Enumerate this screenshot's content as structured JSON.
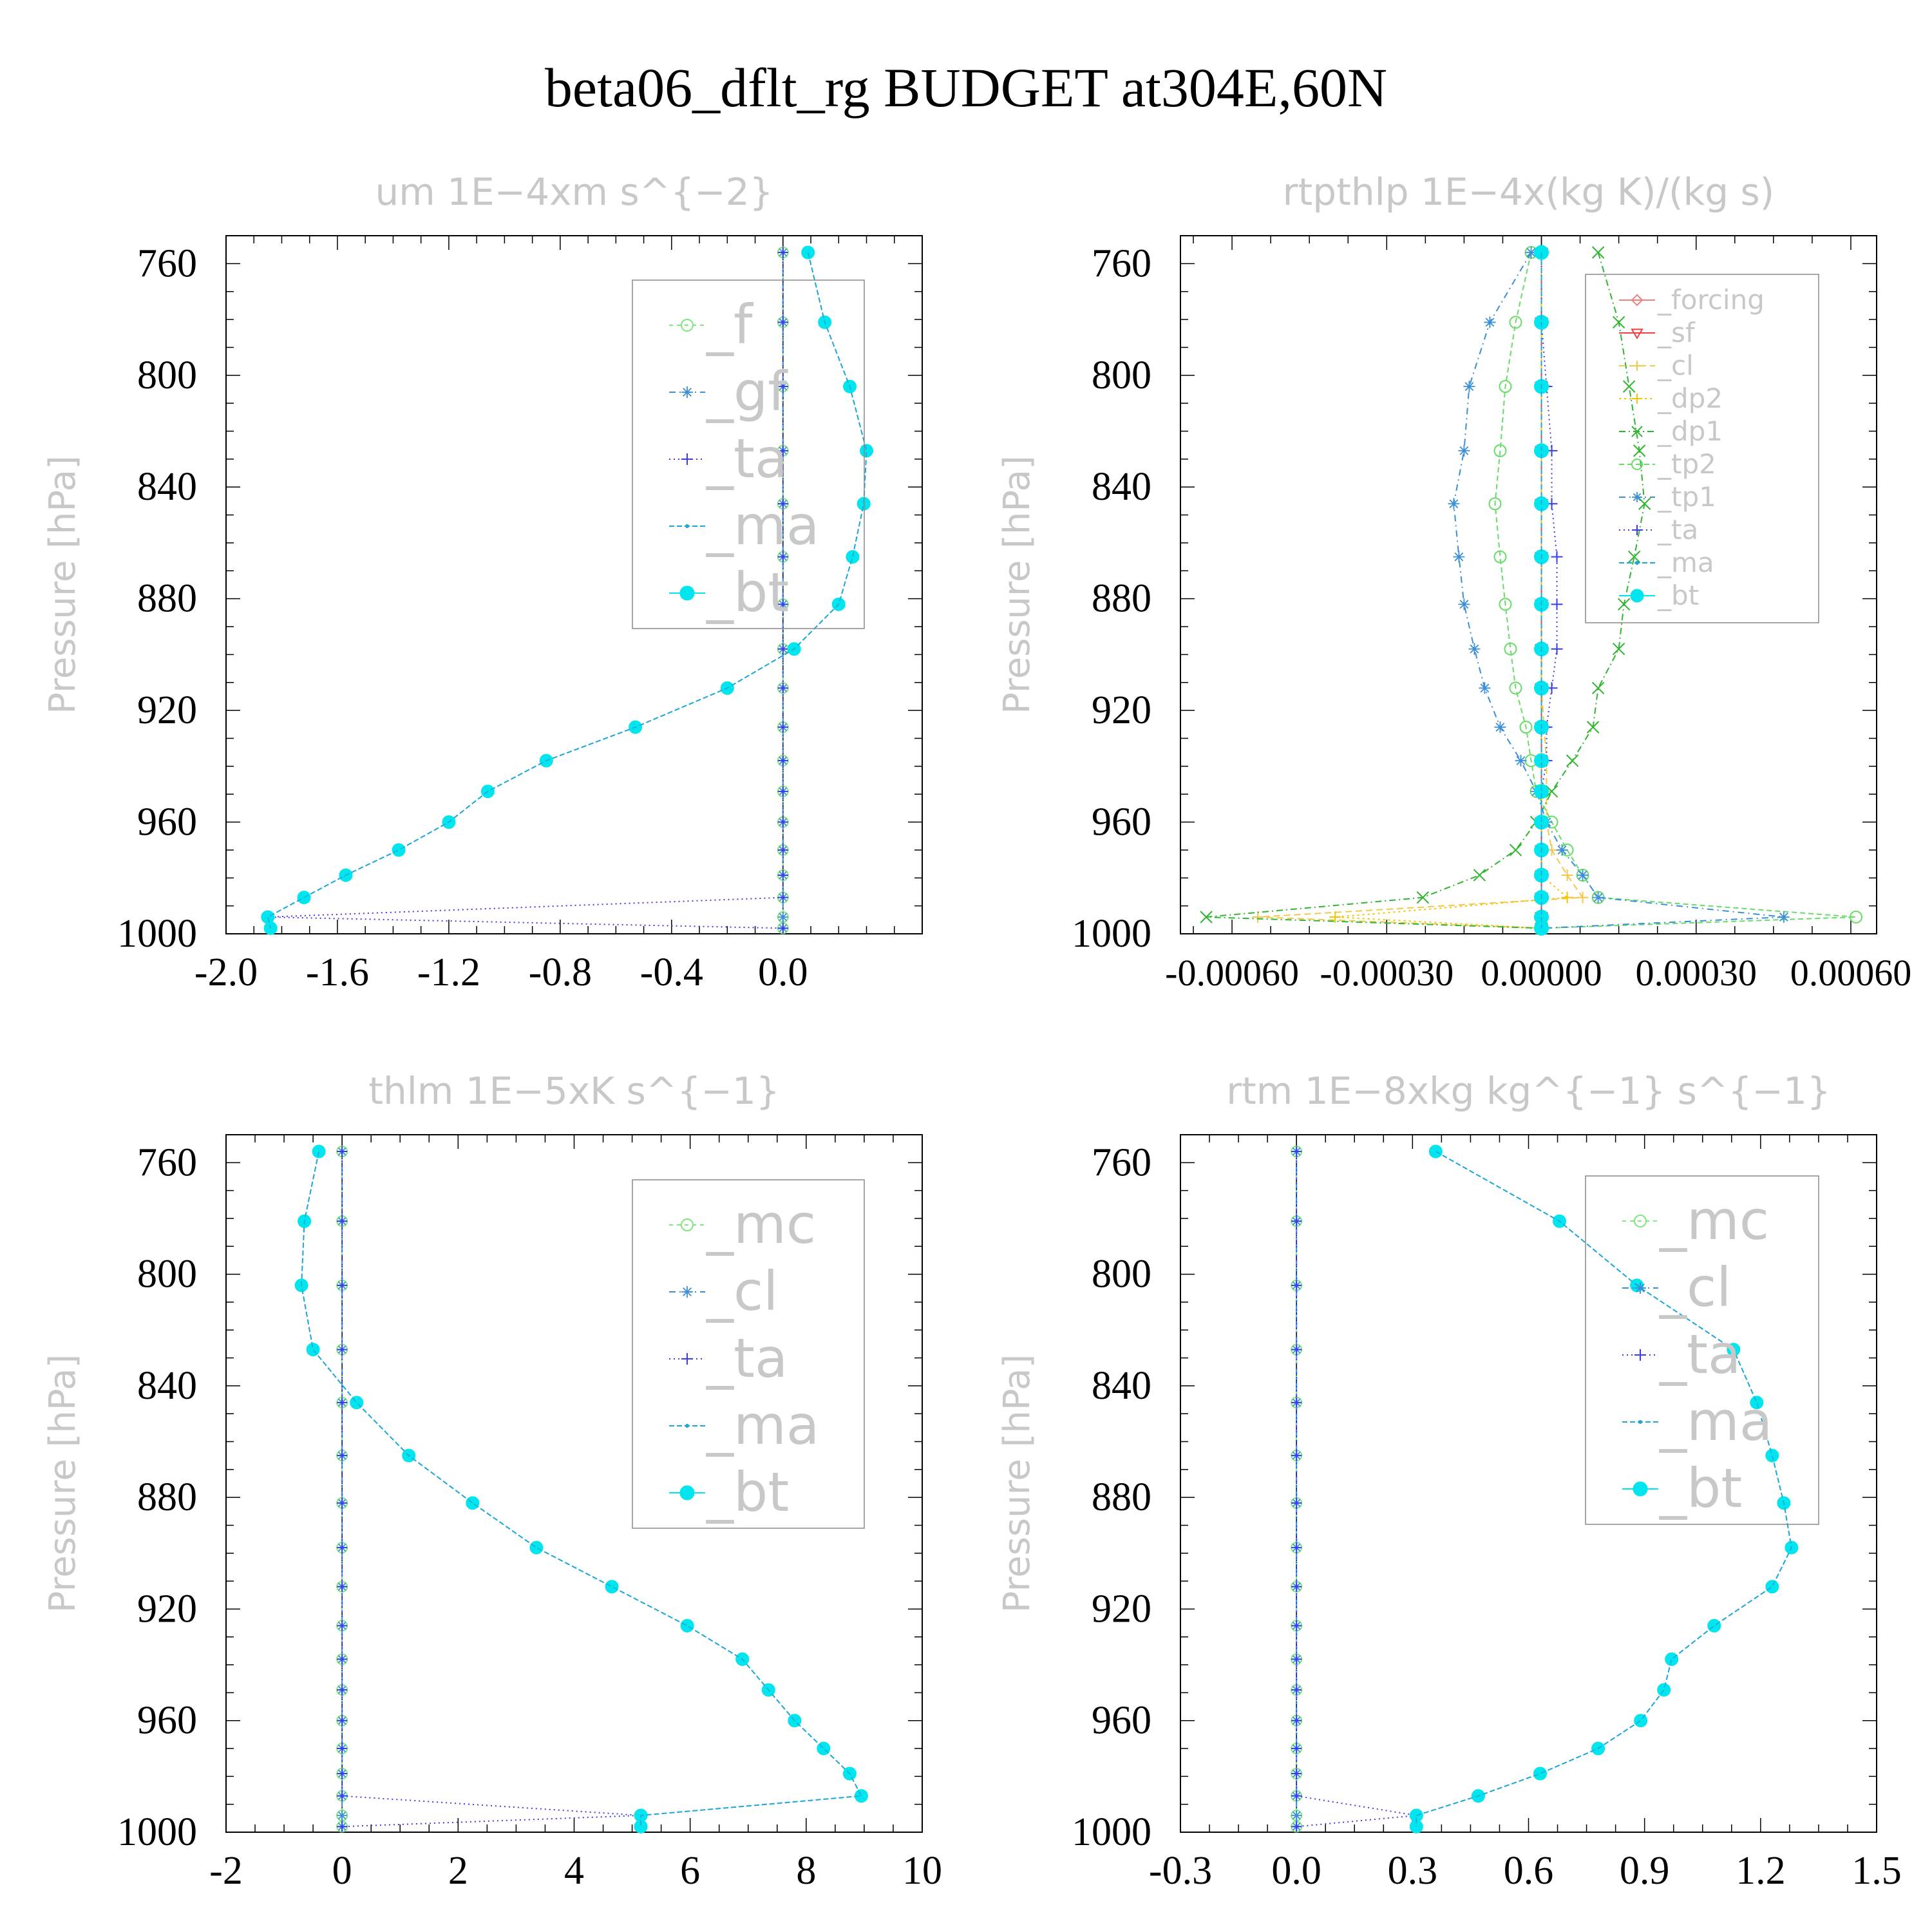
{
  "figure_title": "beta06_dflt_rg  BUDGET at304E,60N",
  "colors": {
    "_f": "#7de87d",
    "_gf": "#3a8fd6",
    "_ta": "#3b3bea",
    "_ma": "#1aa7d8",
    "_bt": "#00e5ee",
    "_mc": "#7de87d",
    "_cl": "#3a8fd6",
    "_forcing": "#f08080",
    "_sf": "#ee4040",
    "_cl_yellow": "#f2c84b",
    "_dp2": "#f5c400",
    "_dp1": "#2fb52f",
    "_tp2": "#66dd66",
    "_tp1": "#3a8fd6",
    "zero_line": "#000000",
    "axes": "#000000",
    "label_gray": "#c8c8c8"
  },
  "chart_data": [
    {
      "type": "line",
      "title": "um   1E−4xm s^{−2}",
      "ylabel": "Pressure [hPa]",
      "xlim": [
        -2.0,
        0.5
      ],
      "ylim": [
        1000,
        750
      ],
      "xticks": [
        -2.0,
        -1.6,
        -1.2,
        -0.8,
        -0.4,
        0.0
      ],
      "xticklabels": [
        "-2.0",
        "-1.6",
        "-1.2",
        "-0.8",
        "-0.4",
        "0.0"
      ],
      "yticks": [
        760,
        800,
        840,
        880,
        920,
        960,
        1000
      ],
      "yticklabels": [
        "760",
        "800",
        "840",
        "880",
        "920",
        "960",
        "1000"
      ],
      "legend": {
        "position": "top-right",
        "font": "large",
        "entries": [
          "_f",
          "_gf",
          "_ta",
          "_ma",
          "_bt"
        ]
      },
      "levels": [
        756,
        781,
        804,
        827,
        846,
        865,
        882,
        898,
        912,
        926,
        938,
        949,
        960,
        970,
        979,
        987,
        994,
        998
      ],
      "series": [
        {
          "name": "_f",
          "color": "#7de87d",
          "marker": "circle-open",
          "dash": "6,6",
          "values": [
            0,
            0,
            0,
            0,
            0,
            0,
            0,
            0,
            0,
            0,
            0,
            0,
            0,
            0,
            0,
            0,
            0,
            0
          ]
        },
        {
          "name": "_gf",
          "color": "#3a8fd6",
          "marker": "star",
          "dash": "10,6,2,6",
          "values": [
            0,
            0,
            0,
            0,
            0,
            0,
            0,
            0,
            0,
            0,
            0,
            0,
            0,
            0,
            0,
            0,
            0,
            0
          ]
        },
        {
          "name": "_ta",
          "color": "#3b3bea",
          "marker": "plus",
          "dash": "2,5",
          "values": [
            0,
            0,
            0,
            0,
            0,
            0,
            0,
            0,
            0,
            0,
            0,
            0,
            0,
            0,
            0,
            0,
            -1.85,
            0
          ]
        },
        {
          "name": "_ma",
          "color": "#1aa7d8",
          "marker": "dot",
          "dash": "8,4",
          "values": [
            0.09,
            0.15,
            0.24,
            0.3,
            0.29,
            0.25,
            0.2,
            0.04,
            -0.2,
            -0.53,
            -0.85,
            -1.06,
            -1.2,
            -1.38,
            -1.57,
            -1.72,
            -1.85,
            -1.84
          ]
        },
        {
          "name": "_bt",
          "color": "#00e5ee",
          "marker": "filled-circle",
          "dash": "",
          "values": [
            0.09,
            0.15,
            0.24,
            0.3,
            0.29,
            0.25,
            0.2,
            0.04,
            -0.2,
            -0.53,
            -0.85,
            -1.06,
            -1.2,
            -1.38,
            -1.57,
            -1.72,
            -1.85,
            -1.84
          ]
        }
      ]
    },
    {
      "type": "line",
      "title": "rtpthlp   1E−4x(kg K)/(kg s)",
      "ylabel": "Pressure [hPa]",
      "xlim": [
        -0.0007,
        0.00065
      ],
      "ylim": [
        1000,
        750
      ],
      "xticks": [
        -0.0006,
        -0.0003,
        0.0,
        0.0003,
        0.0006
      ],
      "xticklabels": [
        "-0.00060",
        "-0.00030",
        "0.00000",
        "0.00030",
        "0.00060"
      ],
      "yticks": [
        760,
        800,
        840,
        880,
        920,
        960,
        1000
      ],
      "yticklabels": [
        "760",
        "800",
        "840",
        "880",
        "920",
        "960",
        "1000"
      ],
      "legend": {
        "position": "top-right",
        "font": "small",
        "entries": [
          "_forcing",
          "_sf",
          "_cl",
          "_dp2",
          "_dp1",
          "_tp2",
          "_tp1",
          "_ta",
          "_ma",
          "_bt"
        ]
      },
      "levels": [
        756,
        781,
        804,
        827,
        846,
        865,
        882,
        898,
        912,
        926,
        938,
        949,
        960,
        970,
        979,
        987,
        994,
        998
      ],
      "series": [
        {
          "name": "_forcing",
          "color": "#f08080",
          "marker": "diamond",
          "dash": "",
          "values": [
            0,
            0,
            0,
            0,
            0,
            0,
            0,
            0,
            0,
            0,
            0,
            0,
            0,
            0,
            0,
            0,
            0,
            0
          ]
        },
        {
          "name": "_sf",
          "color": "#ee4040",
          "marker": "triangle-down",
          "dash": "",
          "values": [
            0,
            0,
            0,
            0,
            0,
            0,
            0,
            0,
            0,
            0,
            0,
            0,
            0,
            0,
            0,
            0,
            0,
            0
          ]
        },
        {
          "name": "_cl",
          "color": "#f2c84b",
          "marker": "plus",
          "dash": "10,6",
          "values": [
            0,
            0,
            0,
            0,
            0,
            0,
            0,
            0,
            0,
            5e-06,
            1e-05,
            1e-05,
            1e-05,
            2e-05,
            5e-05,
            8e-05,
            -0.00055,
            0
          ]
        },
        {
          "name": "_dp2",
          "color": "#f5c400",
          "marker": "plus",
          "dash": "3,5",
          "values": [
            0,
            0,
            0,
            0,
            0,
            0,
            0,
            0,
            0,
            0,
            0,
            0,
            0,
            0,
            0,
            5e-05,
            -0.0004,
            0
          ]
        },
        {
          "name": "_dp1",
          "color": "#2fb52f",
          "marker": "x",
          "dash": "10,5,2,5",
          "values": [
            0.00011,
            0.00015,
            0.00017,
            0.00019,
            0.0002,
            0.00018,
            0.00016,
            0.00015,
            0.00011,
            0.0001,
            6e-05,
            2e-05,
            -1e-05,
            -5e-05,
            -0.00012,
            -0.00023,
            -0.00065,
            0
          ]
        },
        {
          "name": "_tp2",
          "color": "#66dd66",
          "marker": "circle-open",
          "dash": "8,5",
          "values": [
            -2e-05,
            -5e-05,
            -7e-05,
            -8e-05,
            -9e-05,
            -8e-05,
            -7e-05,
            -6e-05,
            -5e-05,
            -3e-05,
            -2e-05,
            -1e-05,
            2e-05,
            5e-05,
            8e-05,
            0.00011,
            0.00061,
            0
          ]
        },
        {
          "name": "_tp1",
          "color": "#3a8fd6",
          "marker": "star",
          "dash": "10,6,2,6",
          "values": [
            -2e-05,
            -0.0001,
            -0.00014,
            -0.00015,
            -0.00017,
            -0.00016,
            -0.00015,
            -0.00013,
            -0.00011,
            -8e-05,
            -4e-05,
            -1e-05,
            1e-05,
            4e-05,
            8e-05,
            0.00011,
            0.00047,
            0
          ]
        },
        {
          "name": "_ta",
          "color": "#3b3bea",
          "marker": "plus",
          "dash": "2,5",
          "values": [
            0,
            0,
            1e-05,
            2e-05,
            2e-05,
            3e-05,
            3e-05,
            3e-05,
            2e-05,
            1e-05,
            1e-05,
            0,
            0,
            0,
            0,
            0,
            0,
            0
          ]
        },
        {
          "name": "_ma",
          "color": "#1aa7d8",
          "marker": "dot",
          "dash": "8,4",
          "values": [
            0,
            0,
            0,
            0,
            0,
            0,
            0,
            0,
            0,
            0,
            0,
            0,
            0,
            0,
            0,
            0,
            0,
            0
          ]
        },
        {
          "name": "_bt",
          "color": "#00e5ee",
          "marker": "filled-circle",
          "dash": "",
          "values": [
            0,
            0,
            0,
            0,
            0,
            0,
            0,
            0,
            0,
            0,
            0,
            0,
            0,
            0,
            0,
            0,
            0,
            0
          ]
        }
      ]
    },
    {
      "type": "line",
      "title": "thlm   1E−5xK s^{−1}",
      "ylabel": "Pressure [hPa]",
      "xlim": [
        -2,
        10
      ],
      "ylim": [
        1000,
        750
      ],
      "xticks": [
        -2,
        0,
        2,
        4,
        6,
        8,
        10
      ],
      "xticklabels": [
        "-2",
        "0",
        "2",
        "4",
        "6",
        "8",
        "10"
      ],
      "yticks": [
        760,
        800,
        840,
        880,
        920,
        960,
        1000
      ],
      "yticklabels": [
        "760",
        "800",
        "840",
        "880",
        "920",
        "960",
        "1000"
      ],
      "legend": {
        "position": "top-right",
        "font": "large",
        "entries": [
          "_mc",
          "_cl",
          "_ta",
          "_ma",
          "_bt"
        ]
      },
      "levels": [
        756,
        781,
        804,
        827,
        846,
        865,
        882,
        898,
        912,
        926,
        938,
        949,
        960,
        970,
        979,
        987,
        994,
        998
      ],
      "series": [
        {
          "name": "_mc",
          "color": "#7de87d",
          "marker": "circle-open",
          "dash": "6,6",
          "values": [
            0,
            0,
            0,
            0,
            0,
            0,
            0,
            0,
            0,
            0,
            0,
            0,
            0,
            0,
            0,
            0,
            0,
            0
          ]
        },
        {
          "name": "_cl",
          "color": "#3a8fd6",
          "marker": "star",
          "dash": "10,6,2,6",
          "values": [
            0,
            0,
            0,
            0,
            0,
            0,
            0,
            0,
            0,
            0,
            0,
            0,
            0,
            0,
            0,
            0,
            0,
            0
          ]
        },
        {
          "name": "_ta",
          "color": "#3b3bea",
          "marker": "plus",
          "dash": "2,5",
          "values": [
            0,
            0,
            0,
            0,
            0,
            0,
            0,
            0,
            0,
            0,
            0,
            0,
            0,
            0,
            0,
            0,
            5.15,
            0
          ]
        },
        {
          "name": "_ma",
          "color": "#1aa7d8",
          "marker": "dot",
          "dash": "8,4",
          "values": [
            -0.4,
            -0.65,
            -0.7,
            -0.5,
            0.25,
            1.15,
            2.25,
            3.35,
            4.65,
            5.95,
            6.9,
            7.35,
            7.8,
            8.3,
            8.75,
            8.95,
            5.15,
            5.15
          ]
        },
        {
          "name": "_bt",
          "color": "#00e5ee",
          "marker": "filled-circle",
          "dash": "",
          "values": [
            -0.4,
            -0.65,
            -0.7,
            -0.5,
            0.25,
            1.15,
            2.25,
            3.35,
            4.65,
            5.95,
            6.9,
            7.35,
            7.8,
            8.3,
            8.75,
            8.95,
            5.15,
            5.15
          ]
        }
      ]
    },
    {
      "type": "line",
      "title": "rtm   1E−8xkg kg^{−1} s^{−1}",
      "ylabel": "Pressure [hPa]",
      "xlim": [
        -0.3,
        1.5
      ],
      "ylim": [
        1000,
        750
      ],
      "xticks": [
        -0.3,
        0.0,
        0.3,
        0.6,
        0.9,
        1.2,
        1.5
      ],
      "xticklabels": [
        "-0.3",
        "0.0",
        "0.3",
        "0.6",
        "0.9",
        "1.2",
        "1.5"
      ],
      "yticks": [
        760,
        800,
        840,
        880,
        920,
        960,
        1000
      ],
      "yticklabels": [
        "760",
        "800",
        "840",
        "880",
        "920",
        "960",
        "1000"
      ],
      "legend": {
        "position": "top-right",
        "font": "large",
        "entries": [
          "_mc",
          "_cl",
          "_ta",
          "_ma",
          "_bt"
        ]
      },
      "levels": [
        756,
        781,
        804,
        827,
        846,
        865,
        882,
        898,
        912,
        926,
        938,
        949,
        960,
        970,
        979,
        987,
        994,
        998
      ],
      "series": [
        {
          "name": "_mc",
          "color": "#7de87d",
          "marker": "circle-open",
          "dash": "6,6",
          "values": [
            0,
            0,
            0,
            0,
            0,
            0,
            0,
            0,
            0,
            0,
            0,
            0,
            0,
            0,
            0,
            0,
            0,
            0
          ]
        },
        {
          "name": "_cl",
          "color": "#3a8fd6",
          "marker": "star",
          "dash": "10,6,2,6",
          "values": [
            0,
            0,
            0,
            0,
            0,
            0,
            0,
            0,
            0,
            0,
            0,
            0,
            0,
            0,
            0,
            0,
            0,
            0
          ]
        },
        {
          "name": "_ta",
          "color": "#3b3bea",
          "marker": "plus",
          "dash": "2,5",
          "values": [
            0,
            0,
            0,
            0,
            0,
            0,
            0,
            0,
            0,
            0,
            0,
            0,
            0,
            0,
            0,
            0,
            0.31,
            0
          ]
        },
        {
          "name": "_ma",
          "color": "#1aa7d8",
          "marker": "dot",
          "dash": "8,4",
          "values": [
            0.36,
            0.68,
            0.88,
            1.13,
            1.19,
            1.23,
            1.26,
            1.28,
            1.23,
            1.08,
            0.97,
            0.95,
            0.89,
            0.78,
            0.63,
            0.47,
            0.31,
            0.31
          ]
        },
        {
          "name": "_bt",
          "color": "#00e5ee",
          "marker": "filled-circle",
          "dash": "",
          "values": [
            0.36,
            0.68,
            0.88,
            1.13,
            1.19,
            1.23,
            1.26,
            1.28,
            1.23,
            1.08,
            0.97,
            0.95,
            0.89,
            0.78,
            0.63,
            0.47,
            0.31,
            0.31
          ]
        }
      ]
    }
  ]
}
